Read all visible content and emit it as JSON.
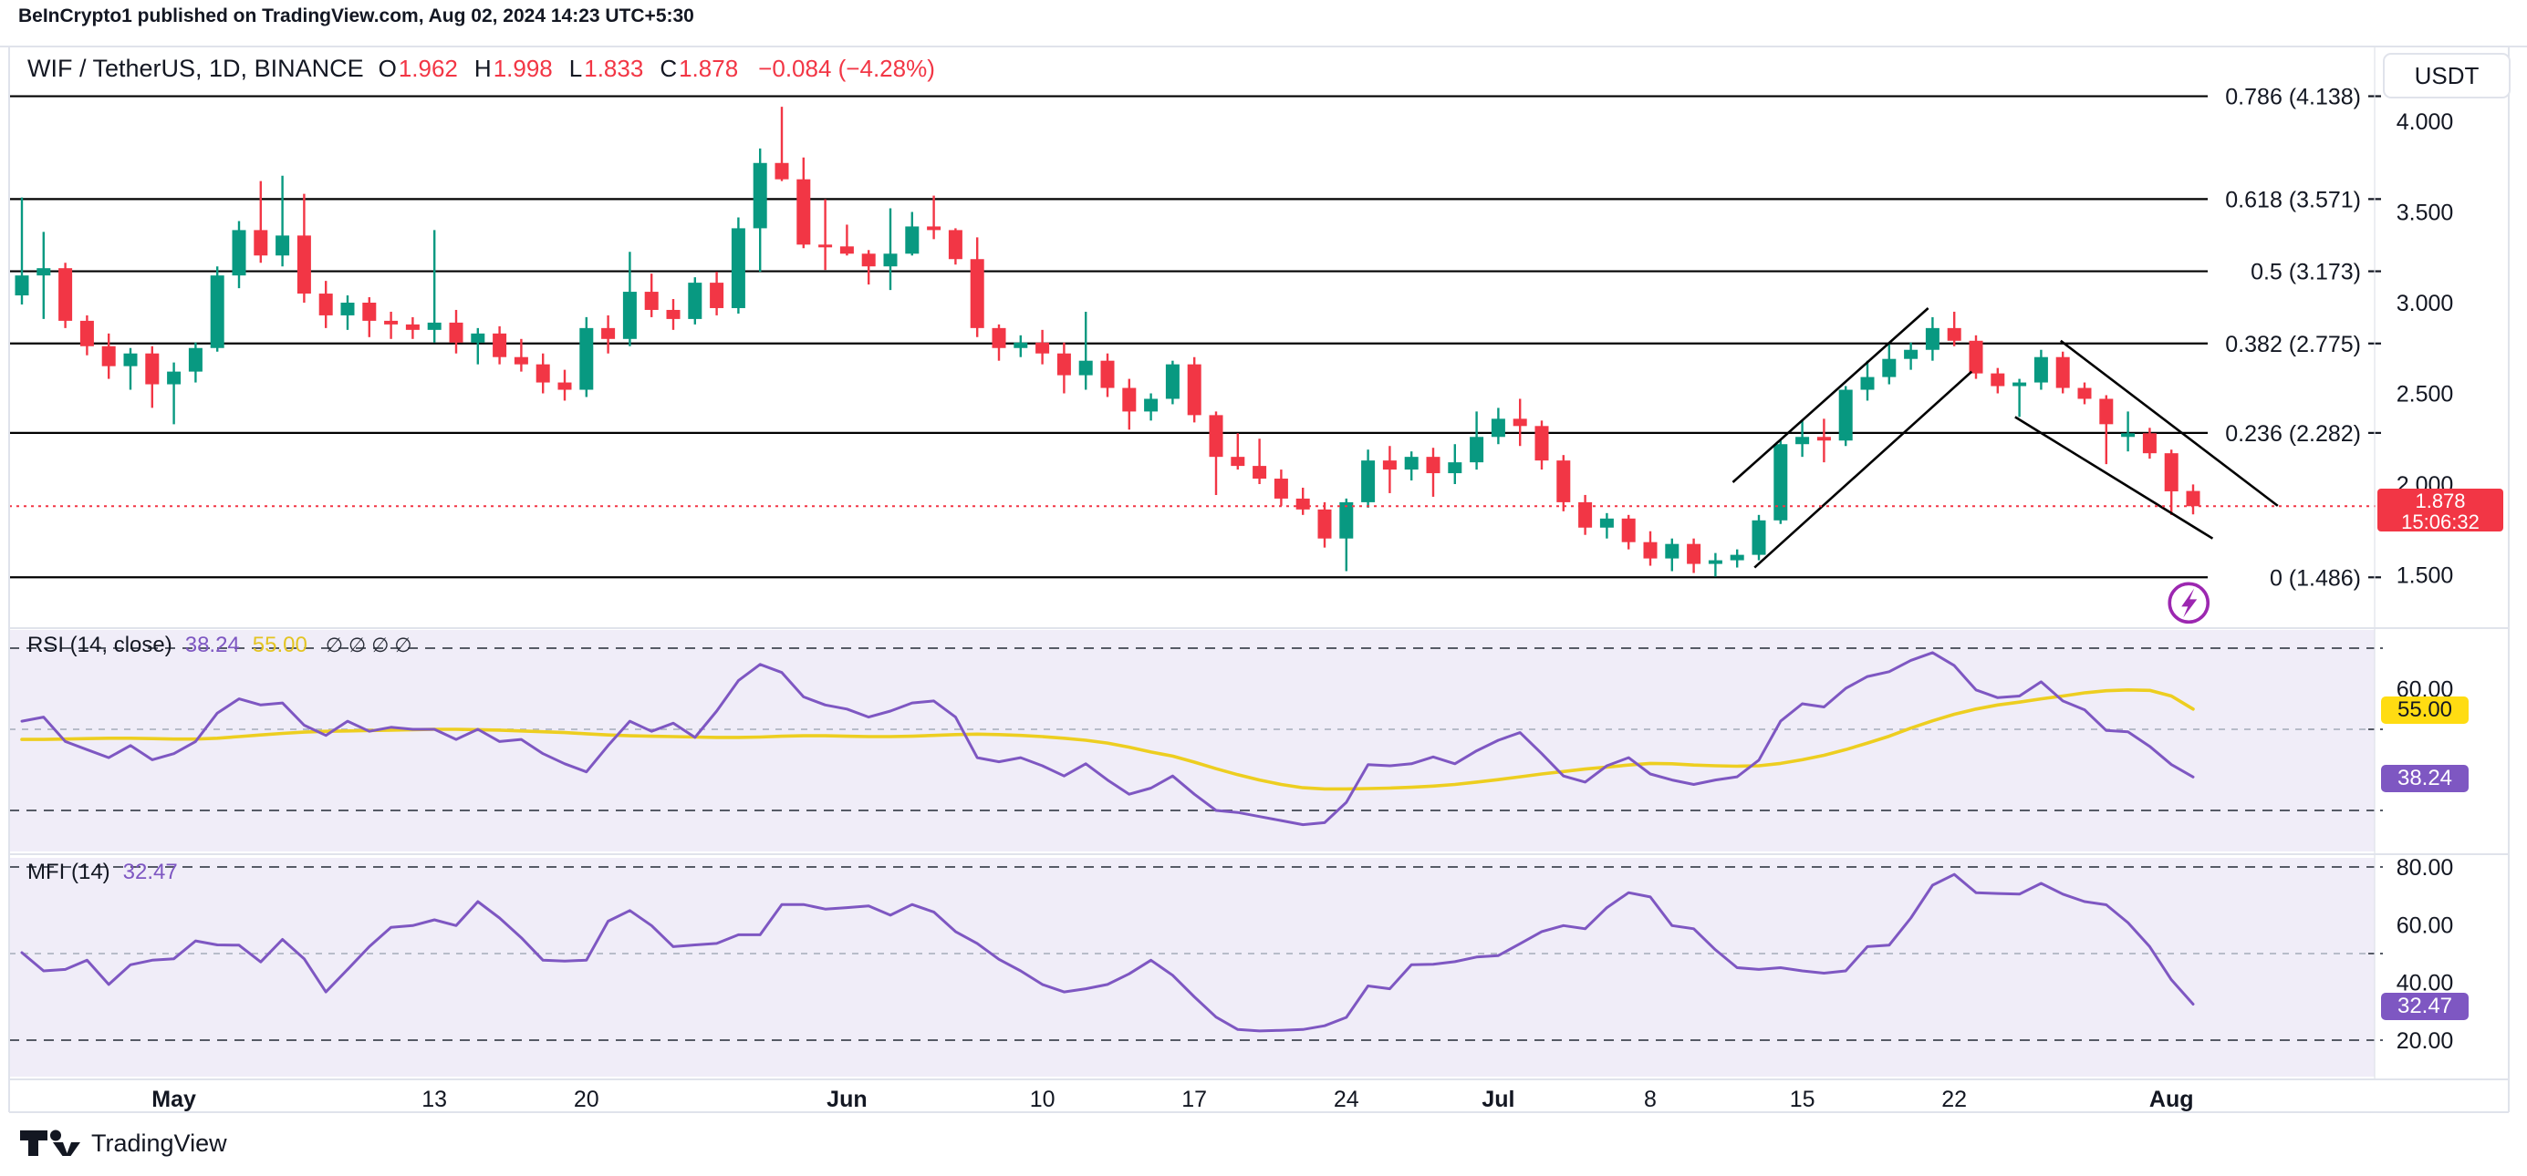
{
  "attribution": "BeInCrypto1 published on TradingView.com, Aug 02, 2024 14:23 UTC+5:30",
  "header": {
    "symbol": "WIF / TetherUS, 1D, BINANCE",
    "ohlc": [
      {
        "label": "O",
        "value": "1.962"
      },
      {
        "label": "H",
        "value": "1.998"
      },
      {
        "label": "L",
        "value": "1.833"
      },
      {
        "label": "C",
        "value": "1.878"
      }
    ],
    "change": "−0.084 (−4.28%)"
  },
  "currency_button": "USDT",
  "price_badge": {
    "price": "1.878",
    "countdown": "15:06:32"
  },
  "price_axis": [
    {
      "text": "4.000",
      "value": 4.0
    },
    {
      "text": "3.500",
      "value": 3.5
    },
    {
      "text": "3.000",
      "value": 3.0
    },
    {
      "text": "2.500",
      "value": 2.5
    },
    {
      "text": "2.000",
      "value": 2.0
    },
    {
      "text": "1.500",
      "value": 1.5
    }
  ],
  "time_axis": [
    {
      "label": "May",
      "index": 7,
      "bold": true
    },
    {
      "label": "13",
      "index": 19,
      "bold": false
    },
    {
      "label": "20",
      "index": 26,
      "bold": false
    },
    {
      "label": "Jun",
      "index": 38,
      "bold": true
    },
    {
      "label": "10",
      "index": 47,
      "bold": false
    },
    {
      "label": "17",
      "index": 54,
      "bold": false
    },
    {
      "label": "24",
      "index": 61,
      "bold": false
    },
    {
      "label": "Jul",
      "index": 68,
      "bold": true
    },
    {
      "label": "8",
      "index": 75,
      "bold": false
    },
    {
      "label": "15",
      "index": 82,
      "bold": false
    },
    {
      "label": "22",
      "index": 89,
      "bold": false
    },
    {
      "label": "Aug",
      "index": 99,
      "bold": true
    }
  ],
  "rsi_panel": {
    "title": "RSI (14, close)",
    "value": "38.24",
    "ma_value": "55.00",
    "empty_slots": [
      "∅",
      "∅",
      "∅",
      "∅"
    ],
    "axis_labels": [
      {
        "text": "60.00",
        "value": 60
      }
    ],
    "badge_value": "38.24",
    "badge_ma": "55.00",
    "levels_dark": [
      70,
      30
    ],
    "levels_light": [
      50
    ]
  },
  "mfi_panel": {
    "title": "MFI (14)",
    "value": "32.47",
    "axis_labels": [
      {
        "text": "80.00",
        "value": 80
      },
      {
        "text": "60.00",
        "value": 60
      },
      {
        "text": "40.00",
        "value": 40
      },
      {
        "text": "20.00",
        "value": 20
      }
    ],
    "badge_value": "32.47",
    "levels_dark": [
      80,
      20
    ],
    "levels_light": [
      50
    ]
  },
  "footer": {
    "brand": "TradingView"
  },
  "colors": {
    "up": "#089981",
    "down": "#f23645",
    "accent_red": "#f23645",
    "dark": "#131722",
    "border": "#e0e3eb",
    "pane_bg": "#f0edf8",
    "dash_dark": "#565b66",
    "dash_light": "#b7bcc9",
    "purple_line": "#7e57c2",
    "yellow_line": "#edce20",
    "fib_line": "#000000",
    "flash_purple": "#9c27b0"
  },
  "chart_data": {
    "type": "candlestick",
    "title": "WIF / TetherUS, 1D, BINANCE",
    "price_axis_range": [
      1.35,
      4.25
    ],
    "last_price": 1.878,
    "fib_levels": [
      {
        "label": "0.786 (4.138)",
        "price": 4.138
      },
      {
        "label": "0.618 (3.571)",
        "price": 3.571
      },
      {
        "label": "0.5 (3.173)",
        "price": 3.173
      },
      {
        "label": "0.382 (2.775)",
        "price": 2.775
      },
      {
        "label": "0.236 (2.282)",
        "price": 2.282
      },
      {
        "label": "0 (1.486)",
        "price": 1.486
      }
    ],
    "trendlines": [
      {
        "name": "rising-channel-upper",
        "i1": 78.8,
        "p1": 2.01,
        "i2": 87.8,
        "p2": 2.97
      },
      {
        "name": "rising-channel-lower",
        "i1": 79.8,
        "p1": 1.54,
        "i2": 89.8,
        "p2": 2.62
      },
      {
        "name": "falling-channel-upper",
        "i1": 93.9,
        "p1": 2.79,
        "i2": 103.9,
        "p2": 1.88
      },
      {
        "name": "falling-channel-lower",
        "i1": 91.8,
        "p1": 2.37,
        "i2": 100.9,
        "p2": 1.7
      }
    ],
    "flash_marker": {
      "index": 99.8,
      "price": 1.345
    },
    "candles": [
      [
        "Apr 24",
        3.04,
        3.58,
        2.99,
        3.15
      ],
      [
        "Apr 25",
        3.15,
        3.39,
        2.91,
        3.19
      ],
      [
        "Apr 26",
        3.19,
        3.22,
        2.86,
        2.9
      ],
      [
        "Apr 27",
        2.9,
        2.93,
        2.71,
        2.76
      ],
      [
        "Apr 28",
        2.76,
        2.83,
        2.58,
        2.65
      ],
      [
        "Apr 29",
        2.65,
        2.75,
        2.52,
        2.72
      ],
      [
        "Apr 30",
        2.72,
        2.76,
        2.42,
        2.55
      ],
      [
        "May 1",
        2.55,
        2.67,
        2.33,
        2.62
      ],
      [
        "May 2",
        2.62,
        2.78,
        2.56,
        2.75
      ],
      [
        "May 3",
        2.75,
        3.2,
        2.73,
        3.15
      ],
      [
        "May 4",
        3.15,
        3.45,
        3.08,
        3.4
      ],
      [
        "May 5",
        3.4,
        3.67,
        3.22,
        3.26
      ],
      [
        "May 6",
        3.26,
        3.7,
        3.2,
        3.37
      ],
      [
        "May 7",
        3.37,
        3.6,
        3.0,
        3.05
      ],
      [
        "May 8",
        3.05,
        3.12,
        2.86,
        2.93
      ],
      [
        "May 9",
        2.93,
        3.04,
        2.85,
        3.0
      ],
      [
        "May 10",
        3.0,
        3.03,
        2.81,
        2.9
      ],
      [
        "May 11",
        2.9,
        2.95,
        2.8,
        2.88
      ],
      [
        "May 12",
        2.88,
        2.92,
        2.8,
        2.85
      ],
      [
        "May 13",
        2.85,
        3.4,
        2.78,
        2.89
      ],
      [
        "May 14",
        2.89,
        2.96,
        2.72,
        2.78
      ],
      [
        "May 15",
        2.78,
        2.86,
        2.66,
        2.83
      ],
      [
        "May 16",
        2.83,
        2.87,
        2.66,
        2.7
      ],
      [
        "May 17",
        2.7,
        2.8,
        2.62,
        2.66
      ],
      [
        "May 18",
        2.66,
        2.72,
        2.5,
        2.56
      ],
      [
        "May 19",
        2.56,
        2.63,
        2.46,
        2.52
      ],
      [
        "May 20",
        2.52,
        2.92,
        2.48,
        2.86
      ],
      [
        "May 21",
        2.86,
        2.93,
        2.72,
        2.8
      ],
      [
        "May 22",
        2.8,
        3.28,
        2.76,
        3.06
      ],
      [
        "May 23",
        3.06,
        3.16,
        2.92,
        2.96
      ],
      [
        "May 24",
        2.96,
        3.02,
        2.85,
        2.91
      ],
      [
        "May 25",
        2.91,
        3.14,
        2.88,
        3.11
      ],
      [
        "May 26",
        3.11,
        3.17,
        2.93,
        2.97
      ],
      [
        "May 27",
        2.97,
        3.47,
        2.94,
        3.41
      ],
      [
        "May 28",
        3.41,
        3.85,
        3.17,
        3.77
      ],
      [
        "May 29",
        3.77,
        4.08,
        3.67,
        3.68
      ],
      [
        "May 30",
        3.68,
        3.8,
        3.3,
        3.32
      ],
      [
        "May 31",
        3.32,
        3.57,
        3.18,
        3.31
      ],
      [
        "Jun 1",
        3.31,
        3.43,
        3.26,
        3.27
      ],
      [
        "Jun 2",
        3.27,
        3.29,
        3.1,
        3.2
      ],
      [
        "Jun 3",
        3.2,
        3.52,
        3.07,
        3.27
      ],
      [
        "Jun 4",
        3.27,
        3.5,
        3.26,
        3.42
      ],
      [
        "Jun 5",
        3.42,
        3.59,
        3.35,
        3.4
      ],
      [
        "Jun 6",
        3.4,
        3.41,
        3.21,
        3.24
      ],
      [
        "Jun 7",
        3.24,
        3.36,
        2.81,
        2.86
      ],
      [
        "Jun 8",
        2.86,
        2.88,
        2.68,
        2.75
      ],
      [
        "Jun 9",
        2.75,
        2.82,
        2.7,
        2.78
      ],
      [
        "Jun 10",
        2.78,
        2.85,
        2.66,
        2.72
      ],
      [
        "Jun 11",
        2.72,
        2.78,
        2.5,
        2.6
      ],
      [
        "Jun 12",
        2.6,
        2.95,
        2.52,
        2.68
      ],
      [
        "Jun 13",
        2.68,
        2.72,
        2.48,
        2.53
      ],
      [
        "Jun 14",
        2.53,
        2.58,
        2.3,
        2.4
      ],
      [
        "Jun 15",
        2.4,
        2.5,
        2.35,
        2.47
      ],
      [
        "Jun 16",
        2.47,
        2.68,
        2.44,
        2.66
      ],
      [
        "Jun 17",
        2.66,
        2.7,
        2.34,
        2.38
      ],
      [
        "Jun 18",
        2.38,
        2.4,
        1.94,
        2.15
      ],
      [
        "Jun 19",
        2.15,
        2.28,
        2.08,
        2.1
      ],
      [
        "Jun 20",
        2.1,
        2.25,
        2.0,
        2.03
      ],
      [
        "Jun 21",
        2.03,
        2.08,
        1.88,
        1.92
      ],
      [
        "Jun 22",
        1.92,
        1.98,
        1.83,
        1.86
      ],
      [
        "Jun 23",
        1.86,
        1.9,
        1.65,
        1.7
      ],
      [
        "Jun 24",
        1.7,
        1.92,
        1.52,
        1.9
      ],
      [
        "Jun 25",
        1.9,
        2.19,
        1.87,
        2.13
      ],
      [
        "Jun 26",
        2.13,
        2.21,
        1.95,
        2.08
      ],
      [
        "Jun 27",
        2.08,
        2.18,
        2.02,
        2.15
      ],
      [
        "Jun 28",
        2.15,
        2.2,
        1.93,
        2.06
      ],
      [
        "Jun 29",
        2.06,
        2.22,
        2.0,
        2.12
      ],
      [
        "Jun 30",
        2.12,
        2.4,
        2.08,
        2.26
      ],
      [
        "Jul 1",
        2.26,
        2.42,
        2.22,
        2.36
      ],
      [
        "Jul 2",
        2.36,
        2.47,
        2.21,
        2.32
      ],
      [
        "Jul 3",
        2.32,
        2.35,
        2.08,
        2.13
      ],
      [
        "Jul 4",
        2.13,
        2.16,
        1.85,
        1.9
      ],
      [
        "Jul 5",
        1.9,
        1.94,
        1.72,
        1.76
      ],
      [
        "Jul 6",
        1.76,
        1.84,
        1.7,
        1.81
      ],
      [
        "Jul 7",
        1.81,
        1.83,
        1.64,
        1.68
      ],
      [
        "Jul 8",
        1.68,
        1.74,
        1.55,
        1.59
      ],
      [
        "Jul 9",
        1.59,
        1.7,
        1.52,
        1.67
      ],
      [
        "Jul 10",
        1.67,
        1.7,
        1.51,
        1.56
      ],
      [
        "Jul 11",
        1.56,
        1.62,
        1.49,
        1.58
      ],
      [
        "Jul 12",
        1.58,
        1.64,
        1.54,
        1.61
      ],
      [
        "Jul 13",
        1.61,
        1.83,
        1.58,
        1.8
      ],
      [
        "Jul 14",
        1.8,
        2.24,
        1.78,
        2.22
      ],
      [
        "Jul 15",
        2.22,
        2.35,
        2.15,
        2.26
      ],
      [
        "Jul 16",
        2.26,
        2.36,
        2.12,
        2.24
      ],
      [
        "Jul 17",
        2.24,
        2.54,
        2.21,
        2.52
      ],
      [
        "Jul 18",
        2.52,
        2.68,
        2.46,
        2.59
      ],
      [
        "Jul 19",
        2.59,
        2.77,
        2.55,
        2.69
      ],
      [
        "Jul 20",
        2.69,
        2.78,
        2.63,
        2.74
      ],
      [
        "Jul 21",
        2.74,
        2.92,
        2.68,
        2.86
      ],
      [
        "Jul 22",
        2.86,
        2.95,
        2.76,
        2.79
      ],
      [
        "Jul 23",
        2.79,
        2.82,
        2.58,
        2.61
      ],
      [
        "Jul 24",
        2.61,
        2.64,
        2.5,
        2.54
      ],
      [
        "Jul 25",
        2.54,
        2.58,
        2.37,
        2.56
      ],
      [
        "Jul 26",
        2.56,
        2.74,
        2.52,
        2.7
      ],
      [
        "Jul 27",
        2.7,
        2.73,
        2.5,
        2.53
      ],
      [
        "Jul 28",
        2.53,
        2.56,
        2.44,
        2.47
      ],
      [
        "Jul 29",
        2.47,
        2.49,
        2.11,
        2.33
      ],
      [
        "Jul 30",
        2.26,
        2.4,
        2.18,
        2.28
      ],
      [
        "Jul 31",
        2.28,
        2.31,
        2.14,
        2.17
      ],
      [
        "Aug 1",
        2.17,
        2.19,
        1.83,
        1.96
      ],
      [
        "Aug 2",
        1.962,
        1.998,
        1.833,
        1.878
      ]
    ],
    "rsi": [
      52,
      53,
      47,
      45,
      43,
      46,
      42.5,
      44,
      47,
      54,
      57.5,
      56,
      56.5,
      51,
      48.5,
      52,
      49.5,
      50.5,
      50,
      50,
      47.5,
      50,
      47,
      47.5,
      44,
      41.5,
      39.5,
      46,
      52,
      49.5,
      51.5,
      48,
      54.5,
      62,
      66,
      64,
      58,
      56,
      55,
      53,
      54.5,
      56.5,
      57,
      53,
      43,
      42,
      43,
      41,
      38.5,
      41.5,
      37.5,
      34,
      35.5,
      38.5,
      34,
      30,
      29.5,
      28.5,
      27.5,
      26.5,
      27,
      32,
      41.3,
      41,
      41.5,
      43.2,
      41.5,
      44.7,
      47.3,
      49.2,
      44,
      38.5,
      37,
      41,
      43,
      39,
      37.5,
      36.4,
      37.5,
      38.3,
      42.4,
      52,
      56.3,
      55.5,
      60.1,
      63,
      64.2,
      67,
      68.9,
      65.7,
      59.7,
      57.8,
      58.2,
      61.7,
      57,
      54.8,
      49.7,
      49.4,
      45.8,
      41.3,
      38.24
    ],
    "rsi_ma": [
      47.5,
      47.5,
      47.6,
      47.7,
      47.8,
      47.8,
      47.7,
      47.6,
      47.6,
      47.8,
      48.2,
      48.6,
      49,
      49.3,
      49.5,
      49.6,
      49.7,
      49.8,
      49.9,
      50,
      50,
      49.9,
      49.8,
      49.6,
      49.4,
      49.2,
      48.9,
      48.6,
      48.4,
      48.3,
      48.2,
      48.1,
      48,
      48,
      48.1,
      48.3,
      48.4,
      48.4,
      48.3,
      48.2,
      48.2,
      48.3,
      48.5,
      48.7,
      48.8,
      48.7,
      48.5,
      48.2,
      47.8,
      47.3,
      46.6,
      45.6,
      44.4,
      43.4,
      41.9,
      40.3,
      38.8,
      37.5,
      36.4,
      35.6,
      35.3,
      35.3,
      35.4,
      35.5,
      35.7,
      36,
      36.4,
      37,
      37.6,
      38.3,
      39,
      39.6,
      40.2,
      40.7,
      41.2,
      41.6,
      41.5,
      41.2,
      41,
      40.9,
      41,
      41.6,
      42.5,
      43.6,
      45,
      46.6,
      48.3,
      50.3,
      52.1,
      53.7,
      55,
      56,
      56.7,
      57.5,
      58.2,
      59,
      59.5,
      59.7,
      59.6,
      58.2,
      55
    ],
    "mfi": [
      50.3,
      44,
      44.5,
      47.7,
      39.3,
      46.1,
      47.7,
      48.2,
      54.4,
      53,
      52.9,
      47.1,
      54.9,
      48.2,
      36.7,
      44.5,
      52.4,
      59.1,
      59.7,
      61.7,
      59.7,
      68,
      62.3,
      55.5,
      47.7,
      47.4,
      47.7,
      61.2,
      64.9,
      59.7,
      52.4,
      53,
      53.5,
      56.5,
      56.5,
      67,
      67,
      65.4,
      65.9,
      66.5,
      63.3,
      67,
      64.4,
      57.6,
      53.5,
      48,
      44,
      39.3,
      36.7,
      37.8,
      39.3,
      43,
      47.7,
      42.5,
      35,
      28,
      23.7,
      23.2,
      23.4,
      23.7,
      25,
      27.9,
      38.8,
      37.8,
      46.1,
      46.3,
      47.2,
      48.8,
      49.3,
      53.4,
      57.6,
      59.7,
      58.6,
      65.9,
      71.1,
      69.6,
      59.7,
      58.6,
      51.3,
      45.1,
      44.5,
      45.1,
      44,
      43.2,
      44,
      52.4,
      52.9,
      62.3,
      73.7,
      77.4,
      71.1,
      70.8,
      70.6,
      74.3,
      70.6,
      68,
      66.9,
      60.7,
      52.4,
      40.9,
      32.47
    ]
  }
}
